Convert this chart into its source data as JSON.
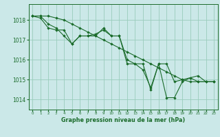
{
  "background_color": "#cbe8e8",
  "plot_bg_color": "#cbe8e8",
  "grid_color": "#99ccbb",
  "line_color": "#1a6b2a",
  "marker_color": "#1a6b2a",
  "xlabel": "Graphe pression niveau de la mer (hPa)",
  "ylim": [
    1013.5,
    1018.8
  ],
  "xlim": [
    -0.5,
    23.5
  ],
  "yticks": [
    1014,
    1015,
    1016,
    1017,
    1018
  ],
  "xticks": [
    0,
    1,
    2,
    3,
    4,
    5,
    6,
    7,
    8,
    9,
    10,
    11,
    12,
    13,
    14,
    15,
    16,
    17,
    18,
    19,
    20,
    21,
    22,
    23
  ],
  "series": [
    [
      1018.2,
      1018.2,
      1017.8,
      1017.6,
      1017.2,
      1016.8,
      1017.2,
      1017.2,
      1017.3,
      1017.5,
      1017.2,
      1017.2,
      1015.8,
      1015.8,
      1015.5,
      1014.6,
      1015.8,
      1015.8,
      1014.9,
      1015.0,
      1015.1,
      1014.9,
      1014.9,
      1014.9
    ],
    [
      1018.2,
      1018.1,
      1017.6,
      1017.5,
      1017.5,
      1016.8,
      1017.2,
      1017.2,
      1017.2,
      1017.6,
      1017.2,
      1017.2,
      1016.0,
      1015.8,
      1015.8,
      1014.5,
      1015.8,
      1014.1,
      1014.1,
      1014.9,
      1015.1,
      1015.2,
      1014.9,
      1014.9
    ],
    [
      1018.2,
      1018.2,
      1018.2,
      1018.1,
      1018.0,
      1017.8,
      1017.6,
      1017.4,
      1017.2,
      1017.0,
      1016.8,
      1016.6,
      1016.4,
      1016.2,
      1016.0,
      1015.8,
      1015.6,
      1015.4,
      1015.2,
      1015.0,
      1014.9,
      1014.9,
      1014.9,
      1014.9
    ]
  ]
}
